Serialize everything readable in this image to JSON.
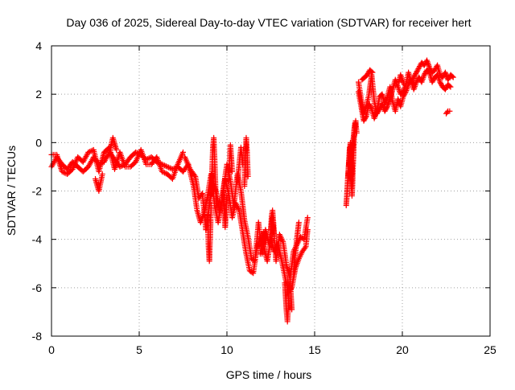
{
  "chart_data": {
    "type": "scatter",
    "title": "Day 036 of 2025, Sidereal Day-to-day VTEC variation (SDTVAR) for receiver hert",
    "xlabel": "GPS time / hours",
    "ylabel": "SDTVAR / TECUs",
    "xlim": [
      0,
      25
    ],
    "ylim": [
      -8,
      4
    ],
    "xticks": [
      0,
      5,
      10,
      15,
      20,
      25
    ],
    "yticks": [
      -8,
      -6,
      -4,
      -2,
      0,
      2,
      4
    ],
    "xtick_labels": [
      "0",
      "5",
      "10",
      "15",
      "20",
      "25"
    ],
    "ytick_labels": [
      "-8",
      "-6",
      "-4",
      "-2",
      "0",
      "2",
      "4"
    ],
    "grid": true,
    "marker": "+",
    "series": [
      {
        "name": "SDTVAR",
        "color": "#ff0000",
        "segments": [
          {
            "x": [
              0.0,
              0.3,
              0.6,
              0.9,
              1.2,
              1.5,
              1.8,
              2.1,
              2.4,
              2.7,
              3.0,
              3.3,
              3.6,
              3.9,
              4.2,
              4.5,
              4.8,
              5.1,
              5.4,
              5.7,
              6.0,
              6.3,
              6.6,
              6.9,
              7.2,
              7.5
            ],
            "y": [
              -1.0,
              -0.6,
              -0.9,
              -1.1,
              -0.8,
              -1.0,
              -1.2,
              -1.0,
              -0.6,
              -0.9,
              -0.8,
              -0.4,
              -0.7,
              -1.0,
              -0.9,
              -0.6,
              -0.4,
              -0.5,
              -0.7,
              -0.6,
              -0.8,
              -0.9,
              -1.0,
              -1.1,
              -1.0,
              -1.2
            ]
          },
          {
            "x": [
              0.0,
              0.3,
              0.6,
              0.9,
              1.2,
              1.5,
              1.8,
              2.1,
              2.4,
              2.7,
              3.0,
              3.3,
              3.6,
              3.9,
              4.2,
              4.5,
              4.8,
              5.1,
              5.4,
              5.7,
              6.0,
              6.3,
              6.6,
              6.9,
              7.2,
              7.5
            ],
            "y": [
              -0.5,
              -0.5,
              -1.2,
              -1.3,
              -1.1,
              -0.6,
              -0.8,
              -0.4,
              -0.3,
              -1.2,
              -0.4,
              -0.2,
              -1.1,
              -0.4,
              -1.0,
              -1.0,
              -0.8,
              -0.3,
              -0.9,
              -0.9,
              -0.6,
              -1.2,
              -1.3,
              -1.5,
              -0.9,
              -0.4
            ]
          },
          {
            "x": [
              2.5,
              2.7,
              2.9
            ],
            "y": [
              -1.5,
              -2.0,
              -1.3
            ]
          },
          {
            "x": [
              3.3,
              3.5,
              3.7
            ],
            "y": [
              -0.4,
              0.2,
              -0.3
            ]
          },
          {
            "x": [
              7.5,
              7.8,
              8.1,
              8.3,
              8.5,
              8.7,
              8.9,
              9.1,
              9.3,
              9.5,
              9.7,
              9.9,
              10.1,
              10.3,
              10.5,
              10.7,
              10.9,
              11.1,
              11.3,
              11.5,
              11.7,
              11.9,
              12.1,
              12.3,
              12.5,
              12.7,
              12.9,
              13.1,
              13.3,
              13.5,
              13.7,
              13.9,
              14.1,
              14.3,
              14.5,
              14.6
            ],
            "y": [
              -1.2,
              -0.9,
              -1.8,
              -2.8,
              -3.3,
              -2.9,
              -2.2,
              -1.3,
              -2.6,
              -3.3,
              -2.4,
              -1.5,
              -2.1,
              -3.1,
              -2.5,
              -2.8,
              -3.7,
              -4.6,
              -5.3,
              -5.4,
              -4.4,
              -3.9,
              -4.3,
              -4.9,
              -4.0,
              -4.5,
              -4.2,
              -4.8,
              -5.5,
              -6.2,
              -6.0,
              -5.2,
              -4.8,
              -4.5,
              -4.3,
              -3.6
            ]
          },
          {
            "x": [
              7.6,
              7.9,
              8.2,
              8.4,
              8.6,
              8.8,
              9.0,
              9.2,
              9.4,
              9.6,
              9.8,
              10.0,
              10.2,
              10.4,
              10.6,
              10.8,
              11.0,
              11.2,
              11.4,
              11.6,
              11.8,
              12.0,
              12.2,
              12.4,
              12.6,
              12.8,
              13.0,
              13.2,
              13.4,
              13.6,
              13.8,
              14.0,
              14.2,
              14.4,
              14.6
            ],
            "y": [
              -0.6,
              -1.1,
              -1.4,
              -2.3,
              -2.1,
              -3.6,
              -2.6,
              -1.6,
              -2.1,
              -2.9,
              -1.9,
              -0.9,
              -1.6,
              -2.6,
              -1.3,
              -2.0,
              -3.2,
              -3.9,
              -4.8,
              -4.9,
              -3.3,
              -4.6,
              -3.6,
              -4.2,
              -3.1,
              -4.9,
              -3.8,
              -4.1,
              -5.1,
              -5.6,
              -4.5,
              -4.2,
              -3.9,
              -4.0,
              -3.1
            ]
          },
          {
            "x": [
              8.9,
              8.95,
              9.0,
              9.05,
              9.1
            ],
            "y": [
              -3.0,
              -4.3,
              -4.9,
              -3.8,
              -2.6
            ]
          },
          {
            "x": [
              9.1,
              9.15,
              9.2,
              9.25,
              9.3,
              9.35,
              9.4
            ],
            "y": [
              -2.2,
              -1.2,
              -0.2,
              0.2,
              -0.7,
              -1.8,
              -2.6
            ]
          },
          {
            "x": [
              9.8,
              9.85,
              9.9,
              9.95,
              10.0
            ],
            "y": [
              -2.0,
              -2.8,
              -3.5,
              -2.9,
              -2.2
            ]
          },
          {
            "x": [
              10.1,
              10.15,
              10.2,
              10.25,
              10.3
            ],
            "y": [
              -1.6,
              -0.8,
              -0.1,
              -0.6,
              -1.2
            ]
          },
          {
            "x": [
              10.6,
              10.7,
              10.8,
              10.9
            ],
            "y": [
              -1.6,
              -0.9,
              -0.2,
              -0.9
            ]
          },
          {
            "x": [
              11.0,
              11.05,
              11.1,
              11.15,
              11.2
            ],
            "y": [
              -1.8,
              -0.6,
              0.2,
              -0.4,
              -1.4
            ]
          },
          {
            "x": [
              11.9,
              12.0,
              12.1,
              12.2
            ],
            "y": [
              -4.6,
              -4.1,
              -3.7,
              -4.2
            ]
          },
          {
            "x": [
              12.5,
              12.55,
              12.6,
              12.65,
              12.7
            ],
            "y": [
              -3.6,
              -3.0,
              -2.8,
              -3.3,
              -3.9
            ]
          },
          {
            "x": [
              13.3,
              13.35,
              13.4,
              13.45,
              13.5,
              13.55,
              13.6,
              13.65,
              13.7
            ],
            "y": [
              -5.8,
              -6.4,
              -7.0,
              -7.4,
              -6.8,
              -6.1,
              -5.6,
              -6.3,
              -6.9
            ]
          },
          {
            "x": [
              13.8,
              13.9,
              14.0,
              14.1
            ],
            "y": [
              -5.4,
              -4.6,
              -3.9,
              -3.3
            ]
          },
          {
            "x": [
              16.8,
              16.83,
              16.86,
              16.89,
              16.92,
              16.95,
              16.98,
              17.01,
              17.04,
              17.07,
              17.1,
              17.13,
              17.16,
              17.19,
              17.22,
              17.25,
              17.28,
              17.31,
              17.34,
              17.37,
              17.4
            ],
            "y": [
              -2.6,
              -2.3,
              -1.9,
              -1.5,
              -1.2,
              -0.9,
              -0.6,
              -0.3,
              0.0,
              -0.8,
              -1.4,
              -2.2,
              -1.7,
              -1.0,
              -0.4,
              0.2,
              0.5,
              0.7,
              0.9,
              0.6,
              0.4
            ]
          },
          {
            "x": [
              16.9,
              16.95,
              17.0,
              17.05,
              17.1,
              17.15,
              17.2,
              17.25,
              17.3
            ],
            "y": [
              -1.5,
              -0.8,
              -0.2,
              -1.2,
              -1.9,
              -0.6,
              0.1,
              0.5,
              0.8
            ]
          },
          {
            "x": [
              17.5,
              17.65,
              17.8,
              17.95,
              18.1,
              18.25,
              18.4,
              18.55,
              18.7,
              18.85,
              19.0,
              19.15,
              19.3,
              19.45,
              19.6,
              19.75,
              19.9,
              20.05,
              20.2,
              20.35,
              20.5,
              20.65,
              20.8,
              20.95,
              21.1,
              21.25,
              21.4,
              21.55,
              21.7,
              21.85,
              22.0,
              22.15,
              22.3,
              22.45,
              22.6,
              22.75,
              22.9
            ],
            "y": [
              2.5,
              1.8,
              1.2,
              1.5,
              2.0,
              2.8,
              1.7,
              1.2,
              1.4,
              1.6,
              1.3,
              1.5,
              1.8,
              2.2,
              2.6,
              2.3,
              2.0,
              2.1,
              2.4,
              2.9,
              2.5,
              2.7,
              2.9,
              3.1,
              3.3,
              3.2,
              3.4,
              3.1,
              2.9,
              3.0,
              3.2,
              2.8,
              2.7,
              2.9,
              2.6,
              2.8,
              2.7
            ]
          },
          {
            "x": [
              17.5,
              17.65,
              17.8,
              17.95,
              18.1,
              18.25,
              18.4,
              18.55,
              18.7,
              18.85,
              19.0,
              19.15,
              19.3,
              19.45,
              19.6,
              19.75,
              19.9,
              20.05,
              20.2,
              20.35,
              20.5,
              20.65,
              20.8,
              20.95,
              21.1,
              21.25,
              21.4,
              21.55,
              21.7,
              21.85,
              22.0,
              22.15,
              22.3,
              22.45,
              22.6,
              22.75
            ],
            "y": [
              2.1,
              1.5,
              0.9,
              1.1,
              1.6,
              1.4,
              1.0,
              1.3,
              1.9,
              2.0,
              1.6,
              1.9,
              2.3,
              1.7,
              1.3,
              1.8,
              1.5,
              1.9,
              2.1,
              2.4,
              2.6,
              2.2,
              2.5,
              2.7,
              2.5,
              2.8,
              3.0,
              2.9,
              2.5,
              2.7,
              2.8,
              2.5,
              2.3,
              2.2,
              2.4,
              2.3
            ]
          },
          {
            "x": [
              17.7,
              17.85,
              18.0,
              18.15,
              18.3
            ],
            "y": [
              2.6,
              2.7,
              2.8,
              3.0,
              2.9
            ]
          },
          {
            "x": [
              19.8,
              19.9,
              20.0,
              20.1
            ],
            "y": [
              2.5,
              2.8,
              2.6,
              2.4
            ]
          },
          {
            "x": [
              22.5,
              22.6,
              22.7
            ],
            "y": [
              1.2,
              1.3,
              1.3
            ]
          }
        ]
      }
    ]
  }
}
